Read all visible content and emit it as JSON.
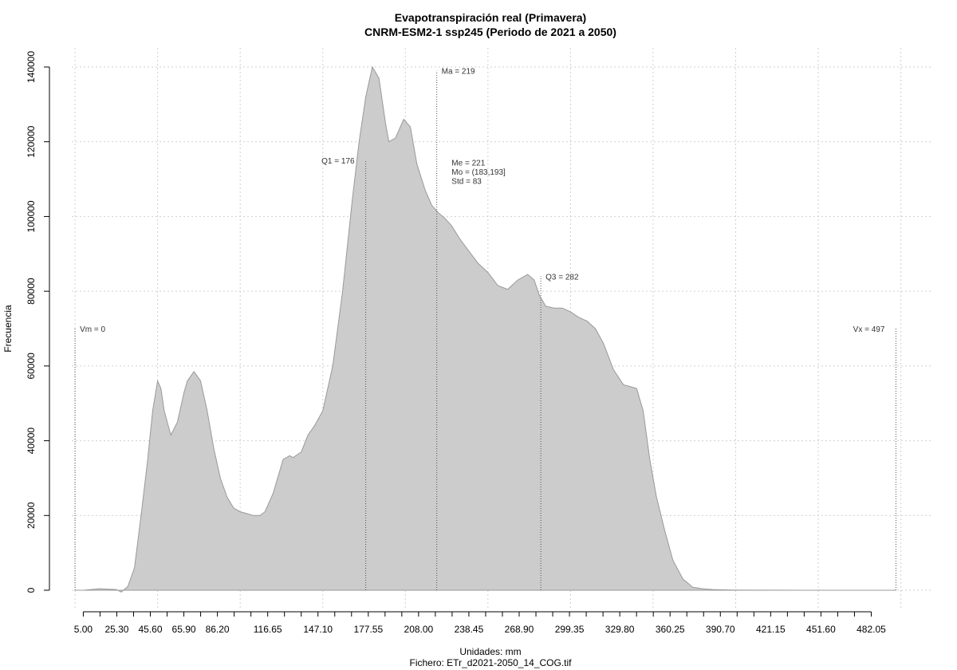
{
  "chart_data": {
    "type": "area",
    "title": "Evapotranspiración real (Primavera)",
    "subtitle": "CNRM-ESM2-1 ssp245 (Periodo de 2021 a 2050)",
    "xlabel": "Unidades: mm",
    "ylabel": "Frecuencia",
    "footer": "Fichero: ETr_d2021-2050_14_COG.tif",
    "xlim": [
      -1,
      505
    ],
    "ylim": [
      0,
      140000
    ],
    "x_ticks": [
      5.0,
      25.3,
      45.6,
      65.9,
      86.2,
      116.65,
      147.1,
      177.55,
      208.0,
      238.45,
      268.9,
      299.35,
      329.8,
      360.25,
      390.7,
      421.15,
      451.6,
      482.05
    ],
    "x_tick_labels": [
      "5.00",
      "25.30",
      "45.60",
      "65.90",
      "86.20",
      "116.65",
      "147.10",
      "177.55",
      "208.00",
      "238.45",
      "268.90",
      "299.35",
      "329.80",
      "360.25",
      "390.70",
      "421.15",
      "451.60",
      "482.05"
    ],
    "y_ticks": [
      0,
      20000,
      40000,
      60000,
      80000,
      100000,
      120000,
      140000
    ],
    "y_tick_labels": [
      "0",
      "20000",
      "40000",
      "60000",
      "80000",
      "100000",
      "120000",
      "140000"
    ],
    "grid": true,
    "fill_color": "#cccccc",
    "line_color": "#999999",
    "series": [
      {
        "x": [
          0,
          5,
          15,
          25,
          28,
          32,
          36,
          40,
          44,
          47,
          50,
          52,
          54,
          58,
          62,
          66,
          68,
          72,
          76,
          80,
          84,
          88,
          92,
          96,
          100,
          104,
          108,
          112,
          115,
          120,
          126,
          130,
          132,
          137,
          141,
          145,
          150,
          156,
          162,
          168,
          172,
          176,
          180,
          184,
          188,
          190,
          194,
          199,
          203,
          207,
          212,
          216,
          220,
          224,
          228,
          233,
          238,
          244,
          250,
          256,
          262,
          268,
          274,
          278,
          281,
          285,
          290,
          295,
          300,
          305,
          310,
          315,
          320,
          326,
          332,
          336,
          340,
          344,
          348,
          352,
          357,
          362,
          368,
          374,
          380,
          386,
          392,
          400,
          410,
          420,
          440,
          480,
          497
        ],
        "y": [
          0,
          0,
          400,
          200,
          -500,
          1000,
          6000,
          20000,
          35000,
          48000,
          56000,
          54000,
          48000,
          41500,
          45000,
          53000,
          56000,
          58500,
          56000,
          48000,
          38000,
          30000,
          25000,
          22000,
          21000,
          20500,
          20000,
          20000,
          21000,
          26000,
          35000,
          36000,
          35500,
          37000,
          41500,
          44000,
          48000,
          60000,
          80000,
          105000,
          120000,
          132000,
          140000,
          137000,
          125000,
          120000,
          121000,
          126000,
          124000,
          114000,
          107000,
          103000,
          101000,
          99500,
          97500,
          94000,
          91000,
          87500,
          85000,
          81500,
          80500,
          83000,
          84500,
          83000,
          79000,
          76000,
          75500,
          75500,
          74500,
          73000,
          72000,
          70000,
          66000,
          59000,
          55000,
          54500,
          54000,
          48000,
          35000,
          25000,
          16000,
          8000,
          3000,
          800,
          400,
          200,
          100,
          50,
          30,
          20,
          10,
          5,
          0
        ]
      }
    ],
    "vlines": [
      {
        "x": 0,
        "label": "Vm = 0",
        "label_side": "right",
        "top": 70000,
        "label_y": 70000
      },
      {
        "x": 176,
        "label": "Q1 = 176",
        "label_side": "left",
        "top": 115000,
        "label_y": 115000
      },
      {
        "x": 219,
        "label": "Ma = 219",
        "label_side": "right",
        "top": 139000,
        "label_y": 139000
      },
      {
        "x": 282,
        "label": "Q3 = 282",
        "label_side": "right",
        "top": 84000,
        "label_y": 84000
      },
      {
        "x": 497,
        "label": "Vx = 497",
        "label_side": "left",
        "top": 70000,
        "label_y": 70000
      }
    ],
    "stats_text": [
      "Me = 221",
      "Mo = (183,193]",
      "Std = 83"
    ],
    "stats_anchor": {
      "x": 228,
      "y": 114500
    }
  }
}
